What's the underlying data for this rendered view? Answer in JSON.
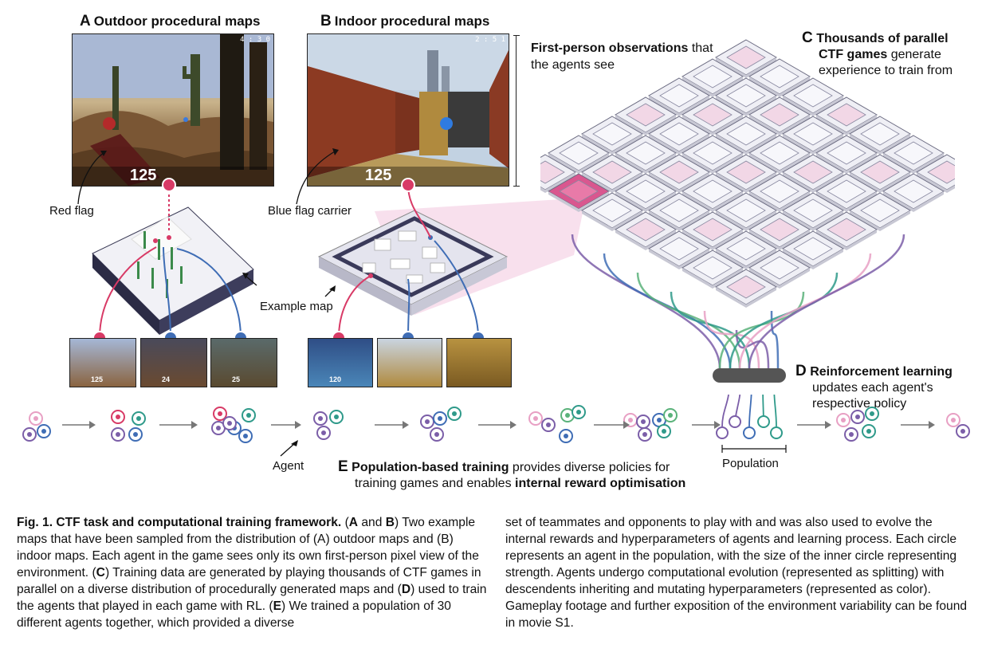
{
  "panelA": {
    "letter": "A",
    "title": "Outdoor procedural maps",
    "timer": "4 : 3 0",
    "score": "125"
  },
  "panelB": {
    "letter": "B",
    "title": "Indoor procedural maps",
    "timer": "2 : 5 1",
    "score": "125"
  },
  "fp_obs": {
    "bold": "First-person observations",
    "rest1": " that",
    "rest2": "the agents see"
  },
  "panelC": {
    "letter": "C",
    "bold1": "Thousands of parallel",
    "bold2": "CTF games",
    "rest1": " generate",
    "line3": "experience to train from"
  },
  "panelD": {
    "letter": "D",
    "bold": "Reinforcement learning",
    "line2": "updates each agent's",
    "line3": "respective policy"
  },
  "panelE": {
    "letter": "E",
    "bold": "Population-based training",
    "rest1": " provides diverse policies for",
    "line2a": "training games and enables ",
    "line2b": "internal reward optimisation"
  },
  "labels": {
    "red_flag": "Red flag",
    "blue_flag_carrier": "Blue flag carrier",
    "example_map": "Example map",
    "agent": "Agent",
    "population": "Population"
  },
  "thumbs_outdoor": [
    "125",
    "24",
    "25"
  ],
  "thumbs_indoor": [
    "120",
    "",
    ""
  ],
  "caption": {
    "fig": "Fig. 1. CTF task and computational training framework.",
    "col1": [
      {
        "t": " (",
        "b": false
      },
      {
        "t": "A",
        "b": true
      },
      {
        "t": " and ",
        "b": false
      },
      {
        "t": "B",
        "b": true
      },
      {
        "t": ") Two example maps that have been sampled from the distribution of (A) outdoor maps and (B) indoor maps. Each agent in the game sees only its own first-person pixel view of the environment. (",
        "b": false
      },
      {
        "t": "C",
        "b": true
      },
      {
        "t": ") Training data are generated by playing thousands of CTF games in parallel on a diverse distribution of procedurally generated maps and (",
        "b": false
      },
      {
        "t": "D",
        "b": true
      },
      {
        "t": ") used to train the agents that played in each game with RL. (",
        "b": false
      },
      {
        "t": "E",
        "b": true
      },
      {
        "t": ") We trained a population of 30 different agents together, which provided a diverse",
        "b": false
      }
    ],
    "col2": "set of teammates and opponents to play with and was also used to evolve the internal rewards and hyperparameters of agents and learning process. Each circle represents an agent in the population, with the size of the inner circle representing strength. Agents undergo computational evolution (represented as splitting) with descendents inheriting and mutating hyperparameters (represented as color). Gameplay footage and further exposition of the environment variability can be found in movie S1."
  },
  "colors": {
    "red": "#d83a66",
    "blue": "#3f6db5",
    "purple": "#7b5ea8",
    "teal": "#2f9a8a",
    "green": "#5ab27a",
    "pink": "#e8a0c4"
  }
}
